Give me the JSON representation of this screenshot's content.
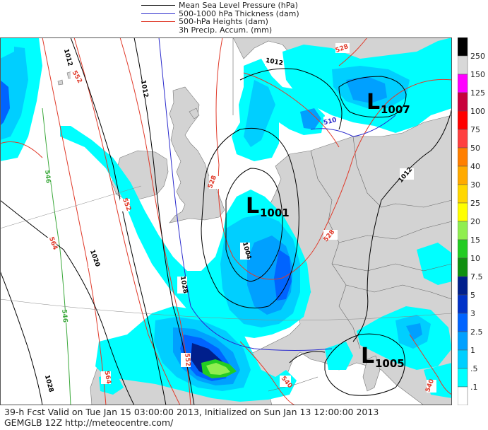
{
  "legend": [
    {
      "label": "Mean Sea Level Pressure (hPa)",
      "color": "#000000"
    },
    {
      "label": "500-1000 hPa Thickness (dam)",
      "color": "#2a2acc"
    },
    {
      "label": "500-hPa Heights (dam)",
      "color": "#e03a2a"
    },
    {
      "label": "3h Precip. Accum. (mm)",
      "color": ""
    }
  ],
  "footer": {
    "line1": "39-h Fcst Valid on Tue Jan 15 03:00:00 2013, Initialized on Sun Jan 13 12:00:00 2013",
    "line2": "GEMGLB 12Z http://meteocentre.com/"
  },
  "colors": {
    "land": "#d3d3d3",
    "sea": "#ffffff",
    "border": "#707070"
  },
  "lows": [
    {
      "letter": "L",
      "value": "1007"
    },
    {
      "letter": "L",
      "value": "1001"
    },
    {
      "letter": "L",
      "value": "1005"
    }
  ],
  "contour_labels": {
    "mslp": [
      "1012",
      "1012",
      "1012",
      "1012",
      "1020",
      "1004",
      "1028"
    ],
    "heights": [
      "552",
      "528",
      "528",
      "552",
      "564",
      "528",
      "552",
      "540",
      "540",
      "564"
    ],
    "thickness": [
      "510",
      "546",
      "546"
    ]
  },
  "precip_scale": [
    {
      "label": "250",
      "color": "#000000"
    },
    {
      "label": "150",
      "color": "#d8d8d8"
    },
    {
      "label": "125",
      "color": "#ff00ff"
    },
    {
      "label": "100",
      "color": "#c8003c"
    },
    {
      "label": "75",
      "color": "#ff0000"
    },
    {
      "label": "50",
      "color": "#ff4040"
    },
    {
      "label": "40",
      "color": "#ff7f00"
    },
    {
      "label": "30",
      "color": "#ffaa00"
    },
    {
      "label": "25",
      "color": "#ffd700"
    },
    {
      "label": "20",
      "color": "#ffff00"
    },
    {
      "label": "15",
      "color": "#90ee50"
    },
    {
      "label": "10",
      "color": "#22cc22"
    },
    {
      "label": "7.5",
      "color": "#109010"
    },
    {
      "label": "5",
      "color": "#001f8c"
    },
    {
      "label": "3",
      "color": "#0032c8"
    },
    {
      "label": "2.5",
      "color": "#0064ff"
    },
    {
      "label": "1",
      "color": "#00a0ff"
    },
    {
      "label": ".5",
      "color": "#00cfff"
    },
    {
      "label": ".1",
      "color": "#00ffff"
    },
    {
      "label": "",
      "color": "#ffffff"
    }
  ]
}
